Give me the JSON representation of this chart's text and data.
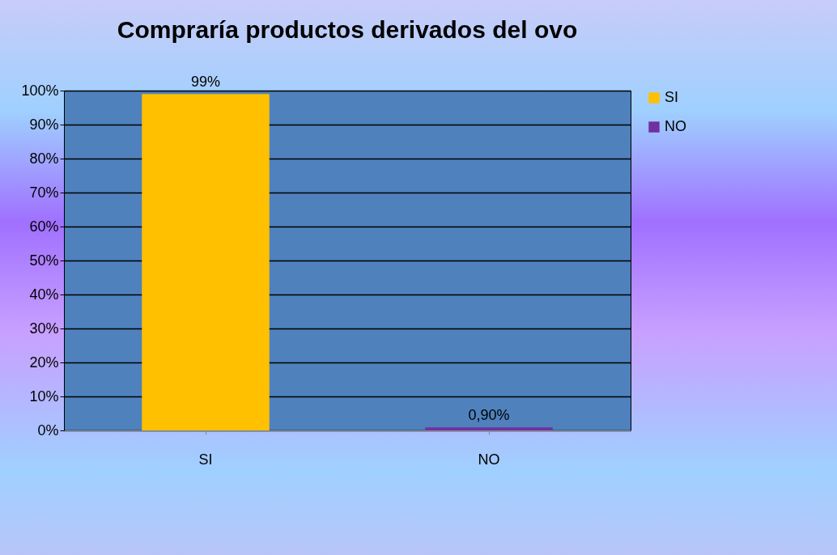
{
  "chart_data": {
    "type": "bar",
    "title": "Compraría productos derivados del ovo",
    "categories": [
      "SI",
      "NO"
    ],
    "series": [
      {
        "name": "SI",
        "color": "#ffc000",
        "values": [
          99,
          null
        ],
        "value_labels": [
          "99%",
          null
        ]
      },
      {
        "name": "NO",
        "color": "#7030a0",
        "values": [
          null,
          0.9
        ],
        "value_labels": [
          null,
          "0,90%"
        ]
      }
    ],
    "ylim": [
      0,
      100
    ],
    "yticks": [
      {
        "value": 0,
        "label": "0%"
      },
      {
        "value": 10,
        "label": "10%"
      },
      {
        "value": 20,
        "label": "20%"
      },
      {
        "value": 30,
        "label": "30%"
      },
      {
        "value": 40,
        "label": "40%"
      },
      {
        "value": 50,
        "label": "50%"
      },
      {
        "value": 60,
        "label": "60%"
      },
      {
        "value": 70,
        "label": "70%"
      },
      {
        "value": 80,
        "label": "80%"
      },
      {
        "value": 90,
        "label": "90%"
      },
      {
        "value": 100,
        "label": "100%"
      }
    ],
    "grid": "y",
    "legend": "right"
  }
}
